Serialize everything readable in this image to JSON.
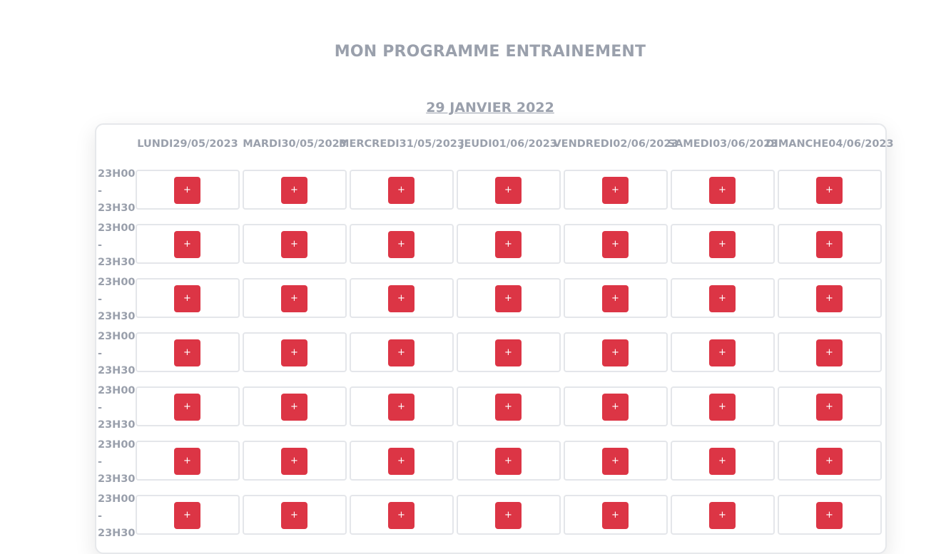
{
  "page": {
    "title": "MON PROGRAMME ENTRAINEMENT",
    "date_heading": "29 JANVIER 2022"
  },
  "days": [
    {
      "name": "LUNDI",
      "date": "29/05/2023"
    },
    {
      "name": "MARDI",
      "date": "30/05/2023"
    },
    {
      "name": "MERCREDI",
      "date": "31/05/2023"
    },
    {
      "name": "JEUDI",
      "date": "01/06/2023"
    },
    {
      "name": "VENDREDI",
      "date": "02/06/2023"
    },
    {
      "name": "SAMEDI",
      "date": "03/06/2023"
    },
    {
      "name": "DIMANCHE",
      "date": "04/06/2023"
    }
  ],
  "slots": [
    {
      "start": "23H00",
      "separator": "-",
      "end": "23H30"
    },
    {
      "start": "23H00",
      "separator": "-",
      "end": "23H30"
    },
    {
      "start": "23H00",
      "separator": "-",
      "end": "23H30"
    },
    {
      "start": "23H00",
      "separator": "-",
      "end": "23H30"
    },
    {
      "start": "23H00",
      "separator": "-",
      "end": "23H30"
    },
    {
      "start": "23H00",
      "separator": "-",
      "end": "23H30"
    },
    {
      "start": "23H00",
      "separator": "-",
      "end": "23H30"
    }
  ],
  "add_button_label": "+",
  "colors": {
    "accent": "#dc3545",
    "text_muted": "#9aa0ac",
    "border": "#e4e6ea"
  }
}
